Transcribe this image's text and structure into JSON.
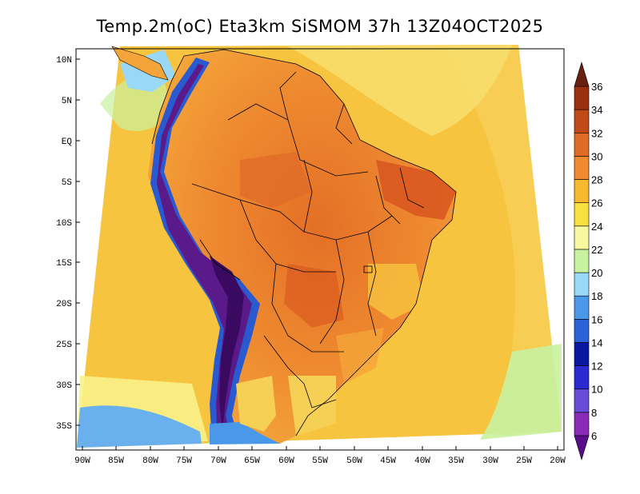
{
  "title": "Temp.2m(oC) Eta3km SiSMOM 37h 13Z04OCT2025",
  "lat_labels": [
    "10N",
    "5N",
    "EQ",
    "5S",
    "10S",
    "15S",
    "20S",
    "25S",
    "30S",
    "35S"
  ],
  "lon_labels": [
    "90W",
    "85W",
    "80W",
    "75W",
    "70W",
    "65W",
    "60W",
    "55W",
    "50W",
    "45W",
    "40W",
    "35W",
    "30W",
    "25W",
    "20W"
  ],
  "colorbar": {
    "labels": [
      "36",
      "34",
      "32",
      "30",
      "28",
      "26",
      "24",
      "22",
      "20",
      "18",
      "16",
      "14",
      "12",
      "10",
      "8",
      "6"
    ],
    "colors_low_to_high": [
      "#5a0d8a",
      "#8a2bb8",
      "#6a4cd8",
      "#2a2ad0",
      "#0a18a0",
      "#2a62d8",
      "#4a98e8",
      "#9ad8f8",
      "#c8f2a0",
      "#f8f8a0",
      "#f8e040",
      "#f8b830",
      "#f08a30",
      "#e06a28",
      "#c04a18",
      "#9a3010",
      "#6a2010"
    ]
  },
  "colors": {
    "ocean_warm": "#f7c43f",
    "ocean_cool": "#f8e48a",
    "land_hot": "#ea7b2c",
    "land_very_hot": "#d8551e",
    "andes_cold": "#5a1a8a",
    "andes_mid": "#2a5ad0",
    "coast_cool": "#6ab0ec"
  }
}
